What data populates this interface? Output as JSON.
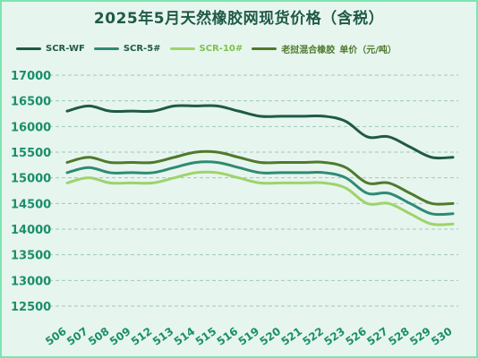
{
  "chart_data": {
    "type": "line",
    "title": "2025年5月天然橡胶网现货价格（含税）",
    "unit_label": "单价（元/吨）",
    "categories": [
      "506",
      "507",
      "508",
      "509",
      "512",
      "513",
      "514",
      "515",
      "516",
      "519",
      "520",
      "521",
      "522",
      "523",
      "526",
      "527",
      "528",
      "529",
      "530"
    ],
    "ylim": [
      12500,
      17000
    ],
    "yticks": [
      12500,
      13000,
      13500,
      14000,
      14500,
      15000,
      15500,
      16000,
      16500,
      17000
    ],
    "grid": true,
    "legend_position": "top",
    "series": [
      {
        "name": "SCR-WF",
        "color": "#1f5a47",
        "values": [
          16300,
          16400,
          16300,
          16300,
          16300,
          16400,
          16400,
          16400,
          16300,
          16200,
          16200,
          16200,
          16200,
          16100,
          15800,
          15800,
          15600,
          15400,
          15400
        ]
      },
      {
        "name": "SCR-5#",
        "color": "#2e8b73",
        "values": [
          15100,
          15200,
          15100,
          15100,
          15100,
          15200,
          15300,
          15300,
          15200,
          15100,
          15100,
          15100,
          15100,
          15000,
          14700,
          14700,
          14500,
          14300,
          14300
        ]
      },
      {
        "name": "SCR-10#",
        "color": "#9ed36a",
        "values": [
          14900,
          15000,
          14900,
          14900,
          14900,
          15000,
          15100,
          15100,
          15000,
          14900,
          14900,
          14900,
          14900,
          14800,
          14500,
          14500,
          14300,
          14100,
          14100
        ]
      },
      {
        "name": "老挝混合橡胶",
        "color": "#4f7a2b",
        "values": [
          15300,
          15400,
          15300,
          15300,
          15300,
          15400,
          15500,
          15500,
          15400,
          15300,
          15300,
          15300,
          15300,
          15200,
          14900,
          14900,
          14700,
          14500,
          14500
        ]
      }
    ]
  },
  "colors": {
    "background": "#e7f5ef",
    "border": "#7fe3b0",
    "title": "#1f5a47",
    "axis_text": "#1a8f6a",
    "grid": "#9fc8bb"
  }
}
